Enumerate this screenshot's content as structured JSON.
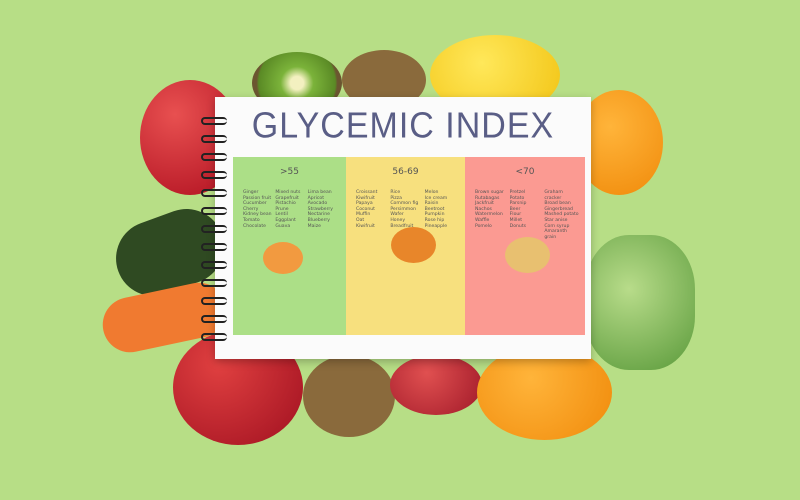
{
  "notebook": {
    "title": "GLYCEMIC INDEX",
    "columns": [
      {
        "heading": ">55",
        "color": "#acdf87",
        "items": [
          [
            "Ginger",
            "Passion fruit",
            "Cucumber",
            "Cherry",
            "Kidney bean",
            "Tomato",
            "Chocolate"
          ],
          [
            "Mixed nuts",
            "Grapefruit",
            "Pistachio",
            "Prune",
            "Lentil",
            "Eggplant",
            "Guava"
          ],
          [
            "Lima bean",
            "Apricot",
            "Avocado",
            "Strawberry",
            "Nectarine",
            "Blueberry",
            "Maize"
          ]
        ]
      },
      {
        "heading": "56-69",
        "color": "#f7e07e",
        "items": [
          [
            "Croissant",
            "Kiwifruit",
            "Papaya",
            "Coconut",
            "Muffin",
            "Oat",
            "Kiwifruit"
          ],
          [
            "Rice",
            "Pizza",
            "Common fig",
            "Persimmon",
            "Wafer",
            "Honey",
            "Breadfruit"
          ],
          [
            "Melon",
            "Ice cream",
            "Raisin",
            "Beetroot",
            "Pumpkin",
            "Rose hip",
            "Pineapple"
          ]
        ]
      },
      {
        "heading": "<70",
        "color": "#fb9a92",
        "items": [
          [
            "Brown sugar",
            "Rutabagas",
            "Jackfruit",
            "Nachos",
            "Watermelon",
            "Waffle",
            "Pomelo"
          ],
          [
            "Pretzel",
            "Potato",
            "Parsnip",
            "Beer",
            "Flour",
            "Millet",
            "Donuts"
          ],
          [
            "Graham cracker",
            "Broad bean",
            "Gingerbread",
            "Mashed potato",
            "Star anise",
            "Corn syrup",
            "Amaranth grain"
          ]
        ]
      }
    ]
  }
}
